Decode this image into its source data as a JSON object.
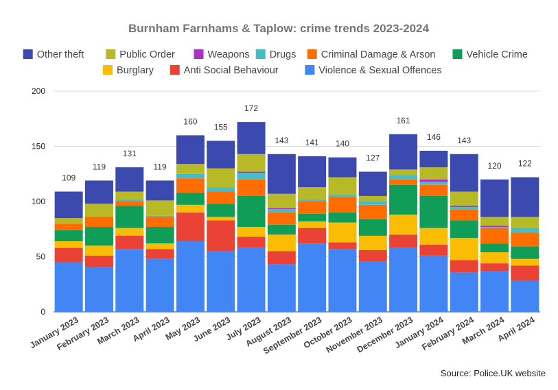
{
  "source_note": "Source: Police.UK website",
  "chart_data": {
    "type": "bar",
    "stacked": true,
    "title": "Burnham Farnhams & Taplow: crime trends 2023-2024",
    "xlabel": "",
    "ylabel": "",
    "ylim": [
      0,
      200
    ],
    "yticks": [
      0,
      50,
      100,
      150,
      200
    ],
    "grid": true,
    "legend_position": "top",
    "categories": [
      "January 2023",
      "February 2023",
      "March 2023",
      "April 2023",
      "May 2023",
      "June 2023",
      "July 2023",
      "August 2023",
      "September 2023",
      "October 2023",
      "November 2023",
      "December 2023",
      "January 2024",
      "February 2024",
      "March 2024",
      "April 2024"
    ],
    "totals": [
      109,
      119,
      131,
      119,
      160,
      155,
      172,
      143,
      141,
      140,
      127,
      161,
      146,
      143,
      120,
      122
    ],
    "legend_order": [
      "Other theft",
      "Public Order",
      "Weapons",
      "Drugs",
      "Criminal Damage & Arson",
      "Vehicle Crime",
      "Burglary",
      "Anti Social Behaviour",
      "Violence & Sexual Offences"
    ],
    "series": [
      {
        "name": "Violence & Sexual Offences",
        "color": "#4285f4",
        "values": [
          45,
          41,
          57,
          48,
          64,
          55,
          58,
          43,
          62,
          57,
          46,
          58,
          51,
          36,
          37,
          28
        ]
      },
      {
        "name": "Anti Social Behaviour",
        "color": "#ea4335",
        "values": [
          13,
          10,
          12,
          9,
          26,
          28,
          10,
          12,
          14,
          6,
          10,
          12,
          10,
          11,
          7,
          14
        ]
      },
      {
        "name": "Burglary",
        "color": "#fbbc04",
        "values": [
          6,
          9,
          7,
          5,
          7,
          3,
          9,
          15,
          6,
          18,
          13,
          18,
          15,
          20,
          10,
          6
        ]
      },
      {
        "name": "Vehicle Crime",
        "color": "#0f9d58",
        "values": [
          10,
          17,
          20,
          15,
          11,
          12,
          28,
          9,
          7,
          9,
          15,
          27,
          29,
          16,
          8,
          11
        ]
      },
      {
        "name": "Criminal Damage & Arson",
        "color": "#ff6d01",
        "values": [
          6,
          9,
          4,
          9,
          13,
          11,
          15,
          11,
          11,
          14,
          13,
          5,
          10,
          10,
          14,
          13
        ]
      },
      {
        "name": "Drugs",
        "color": "#46bdc6",
        "values": [
          0,
          0,
          2,
          1,
          4,
          4,
          6,
          3,
          2,
          2,
          3,
          4,
          3,
          2,
          1,
          4
        ]
      },
      {
        "name": "Weapons",
        "color": "#ab30c4",
        "values": [
          0,
          0,
          0,
          0,
          0,
          0,
          1,
          1,
          0,
          0,
          0,
          0,
          2,
          1,
          1,
          0
        ]
      },
      {
        "name": "Public Order",
        "color": "#b7b927",
        "values": [
          5,
          12,
          7,
          14,
          9,
          17,
          16,
          13,
          11,
          16,
          5,
          5,
          11,
          13,
          8,
          10
        ]
      },
      {
        "name": "Other theft",
        "color": "#3c4ab0",
        "values": [
          24,
          21,
          22,
          18,
          26,
          25,
          29,
          36,
          28,
          18,
          22,
          32,
          15,
          34,
          34,
          36
        ]
      }
    ]
  }
}
